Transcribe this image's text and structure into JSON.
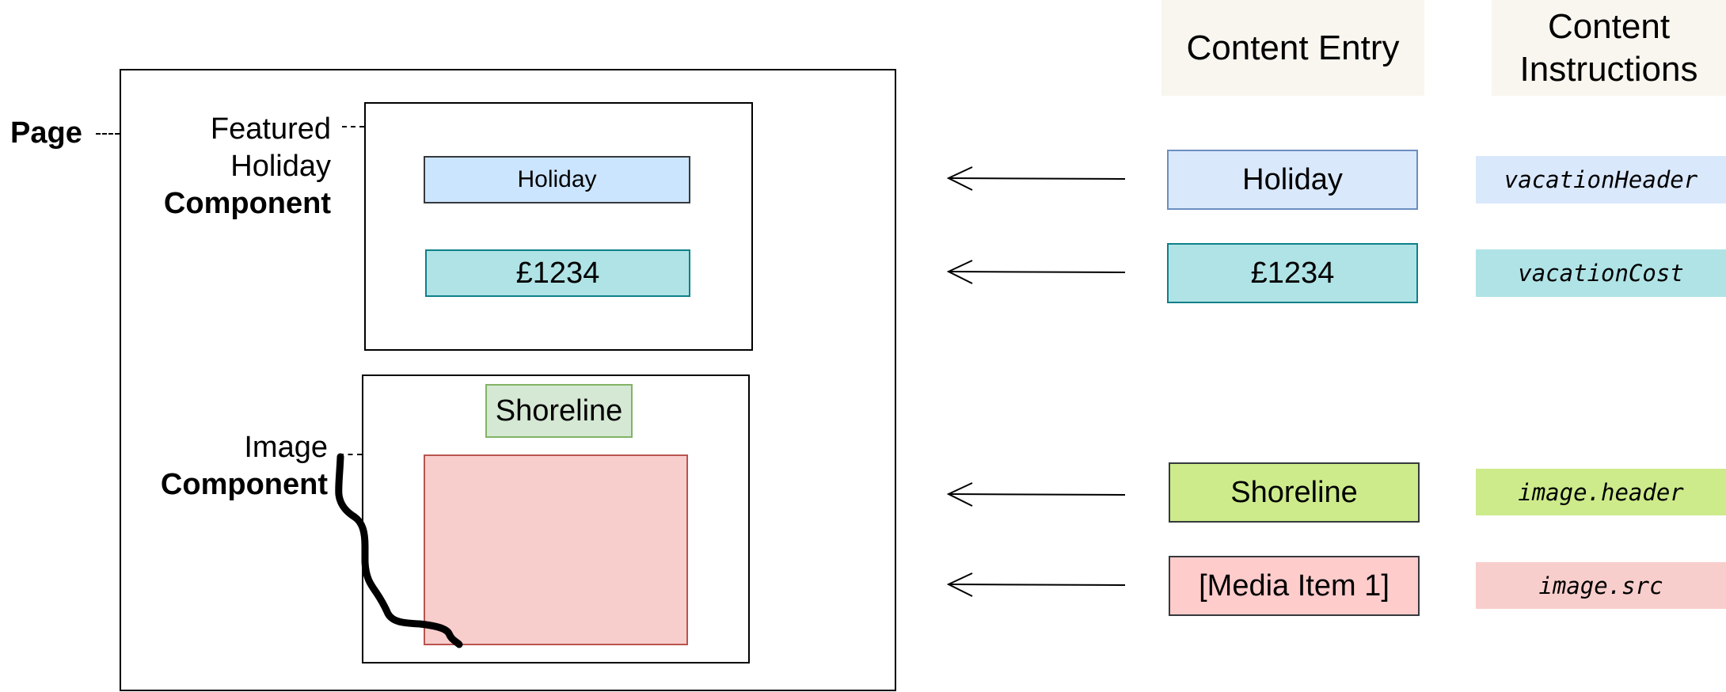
{
  "labels": {
    "page": "Page",
    "featured_line1": "Featured",
    "featured_line2": "Holiday",
    "featured_line3": "Component",
    "image_line1": "Image",
    "image_line2": "Component"
  },
  "page_mock": {
    "holiday_header": "Holiday",
    "holiday_cost": "£1234",
    "image_header": "Shoreline",
    "image_placeholder_icon": "shoreline-sketch"
  },
  "columns": {
    "content_entry": "Content Entry",
    "content_instructions_line1": "Content",
    "content_instructions_line2": "Instructions"
  },
  "rows": [
    {
      "entry": "Holiday",
      "instruction": "vacationHeader",
      "color": "#dae8fc"
    },
    {
      "entry": "£1234",
      "instruction": "vacationCost",
      "color": "#b0e3e6"
    },
    {
      "entry": "Shoreline",
      "instruction": "image.header",
      "color": "#cdeb8b"
    },
    {
      "entry": "[Media Item 1]",
      "instruction": "image.src",
      "color": "#f8cecc"
    }
  ],
  "colors": {
    "header_bg": "#f8f6ee",
    "holiday_fill": "#cce5ff",
    "cost_fill": "#b0e3e6",
    "shoreline_fill": "#d5e8d4",
    "image_fill": "#f8cecc"
  }
}
